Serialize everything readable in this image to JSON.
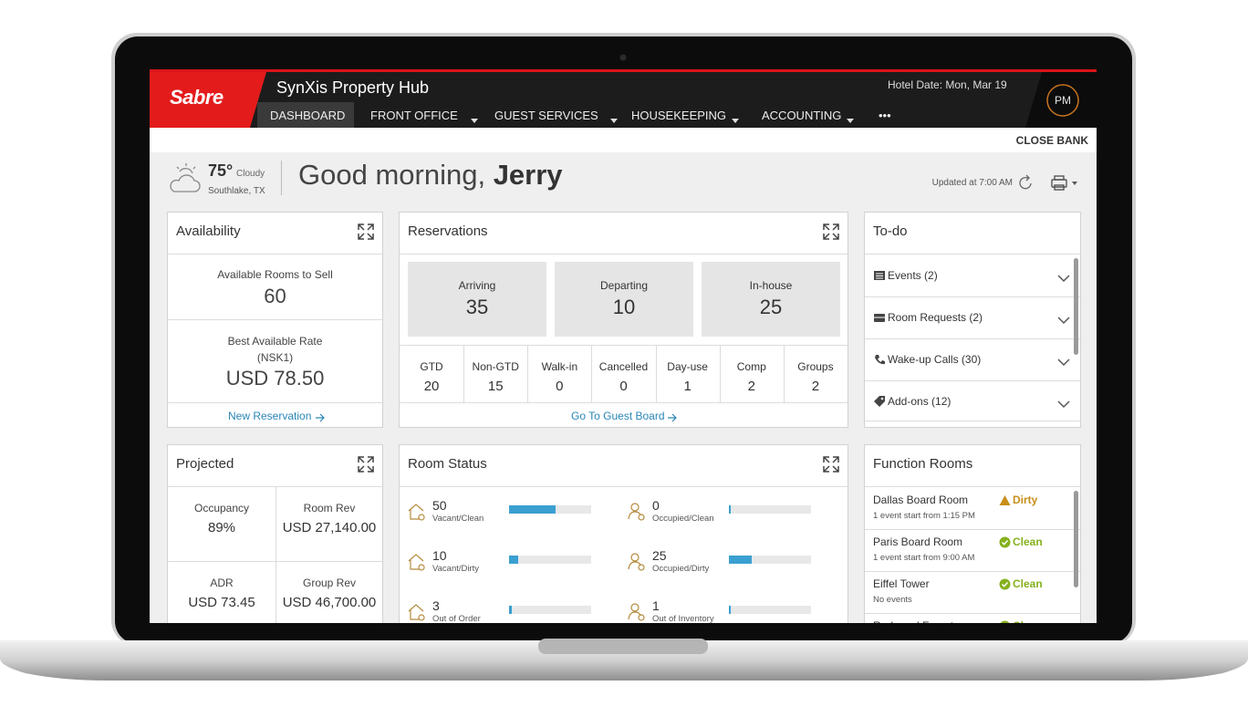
{
  "header": {
    "brand": "Sabre",
    "app_title": "SynXis Property Hub",
    "hotel_date": "Hotel Date: Mon, Mar 19",
    "user_initials": "PM",
    "nav": [
      {
        "label": "DASHBOARD",
        "active": true,
        "dropdown": false
      },
      {
        "label": "FRONT OFFICE",
        "active": false,
        "dropdown": true
      },
      {
        "label": "GUEST SERVICES",
        "active": false,
        "dropdown": true
      },
      {
        "label": "HOUSEKEEPING",
        "active": false,
        "dropdown": true
      },
      {
        "label": "ACCOUNTING",
        "active": false,
        "dropdown": true
      },
      {
        "label": "•••",
        "active": false,
        "dropdown": false
      }
    ]
  },
  "toolbar": {
    "close_bank": "CLOSE BANK"
  },
  "greeting": {
    "temperature": "75°",
    "condition": "Cloudy",
    "location": "Southlake, TX",
    "salutation": "Good morning,",
    "name": "Jerry",
    "updated": "Updated at 7:00 AM"
  },
  "availability": {
    "title": "Availability",
    "rooms_label": "Available Rooms to Sell",
    "rooms_value": 60,
    "rate_label": "Best Available Rate",
    "rate_code": "(NSK1)",
    "rate_value": "USD 78.50",
    "link": "New Reservation"
  },
  "reservations": {
    "title": "Reservations",
    "summary": [
      {
        "label": "Arriving",
        "value": 35
      },
      {
        "label": "Departing",
        "value": 10
      },
      {
        "label": "In-house",
        "value": 25
      }
    ],
    "breakdown": [
      {
        "label": "GTD",
        "value": 20
      },
      {
        "label": "Non-GTD",
        "value": 15
      },
      {
        "label": "Walk-in",
        "value": 0
      },
      {
        "label": "Cancelled",
        "value": 0
      },
      {
        "label": "Day-use",
        "value": 1
      },
      {
        "label": "Comp",
        "value": 2
      },
      {
        "label": "Groups",
        "value": 2
      }
    ],
    "link": "Go To Guest Board"
  },
  "todo": {
    "title": "To-do",
    "items": [
      {
        "label": "Events (2)"
      },
      {
        "label": "Room Requests (2)"
      },
      {
        "label": "Wake-up Calls (30)"
      },
      {
        "label": "Add-ons (12)"
      }
    ]
  },
  "projected": {
    "title": "Projected",
    "items": [
      {
        "label": "Occupancy",
        "value": "89%"
      },
      {
        "label": "Room Rev",
        "value": "USD 27,140.00"
      },
      {
        "label": "ADR",
        "value": "USD 73.45"
      },
      {
        "label": "Group Rev",
        "value": "USD 46,700.00"
      }
    ]
  },
  "room_status": {
    "title": "Room Status",
    "bar_color": "#3a9fd1",
    "items": [
      {
        "value": 50,
        "label": "Vacant/Clean"
      },
      {
        "value": 0,
        "label": "Occupied/Clean"
      },
      {
        "value": 10,
        "label": "Vacant/Dirty"
      },
      {
        "value": 25,
        "label": "Occupied/Dirty"
      },
      {
        "value": 3,
        "label": "Out of Order"
      },
      {
        "value": 1,
        "label": "Out of Inventory"
      }
    ]
  },
  "function_rooms": {
    "title": "Function Rooms",
    "items": [
      {
        "name": "Dallas Board Room",
        "detail": "1 event start from 1:15 PM",
        "status": "Dirty",
        "color": "#c8901a"
      },
      {
        "name": "Paris Board Room",
        "detail": "1 event start from 9:00 AM",
        "status": "Clean",
        "color": "#86b11e"
      },
      {
        "name": "Eiffel Tower",
        "detail": "No events",
        "status": "Clean",
        "color": "#86b11e"
      },
      {
        "name": "Redwood Forest",
        "status": "Clean",
        "color": "#86b11e"
      }
    ]
  }
}
